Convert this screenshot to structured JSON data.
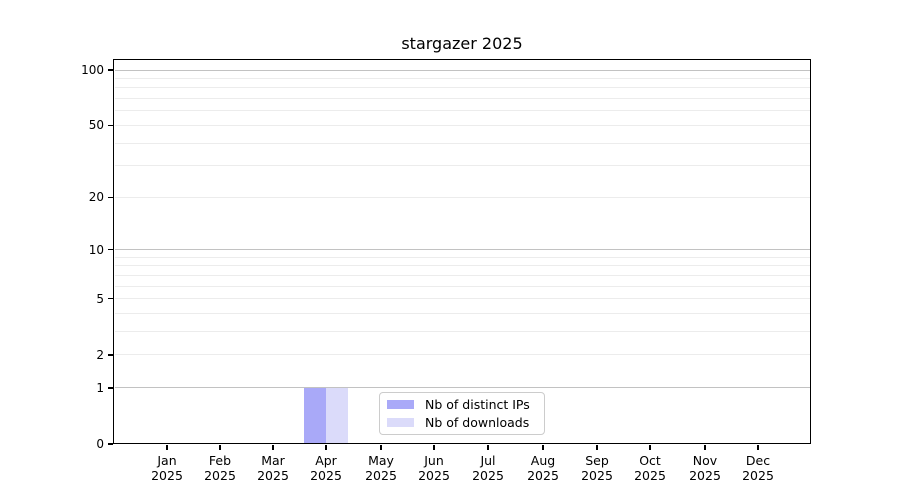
{
  "chart_data": {
    "type": "bar",
    "title": "stargazer 2025",
    "categories": [
      {
        "month": "Jan",
        "year": "2025"
      },
      {
        "month": "Feb",
        "year": "2025"
      },
      {
        "month": "Mar",
        "year": "2025"
      },
      {
        "month": "Apr",
        "year": "2025"
      },
      {
        "month": "May",
        "year": "2025"
      },
      {
        "month": "Jun",
        "year": "2025"
      },
      {
        "month": "Jul",
        "year": "2025"
      },
      {
        "month": "Aug",
        "year": "2025"
      },
      {
        "month": "Sep",
        "year": "2025"
      },
      {
        "month": "Oct",
        "year": "2025"
      },
      {
        "month": "Nov",
        "year": "2025"
      },
      {
        "month": "Dec",
        "year": "2025"
      }
    ],
    "series": [
      {
        "name": "Nb of distinct IPs",
        "color": "#a9a9f8",
        "values": [
          0,
          0,
          0,
          1,
          0,
          0,
          0,
          0,
          0,
          0,
          0,
          0
        ]
      },
      {
        "name": "Nb of downloads",
        "color": "#dbdbfa",
        "values": [
          0,
          0,
          0,
          1,
          0,
          0,
          0,
          0,
          0,
          0,
          0,
          0
        ]
      }
    ],
    "y_axis": {
      "scale": "log1p",
      "ylim": [
        0,
        115
      ],
      "labeled_ticks": [
        0,
        1,
        2,
        5,
        10,
        20,
        50,
        100
      ],
      "emphasized_gridlines": [
        1,
        10,
        100
      ],
      "minor_gridlines": [
        2,
        3,
        4,
        5,
        6,
        7,
        8,
        9,
        20,
        30,
        40,
        50,
        60,
        70,
        80,
        90
      ],
      "grid": "on"
    },
    "legend": {
      "position": "inside-bottom-center",
      "entries": [
        "Nb of distinct IPs",
        "Nb of downloads"
      ]
    },
    "colors": {
      "axis": "#000000",
      "grid_major": "#c2c2c2",
      "grid_minor": "#ececec",
      "background": "#ffffff"
    }
  }
}
